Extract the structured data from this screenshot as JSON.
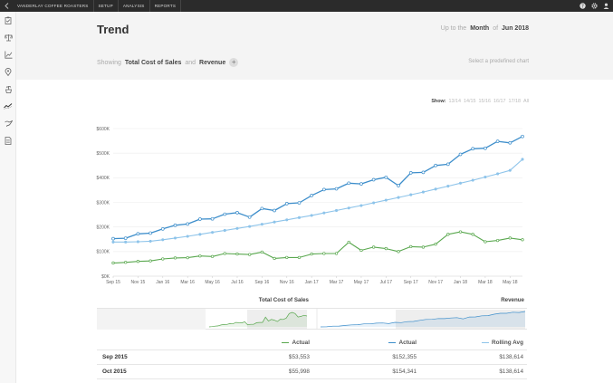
{
  "topbar": {
    "nav": [
      "VANDERLAY COFFEE ROASTERS",
      "SETUP",
      "ANALYSIS",
      "REPORTS"
    ],
    "icons": [
      "help-icon",
      "gear-icon",
      "user-icon"
    ]
  },
  "sidebar": {
    "icons": [
      "clipboard-icon",
      "scale-icon",
      "chart-line-icon",
      "location-icon",
      "coffee-plant-icon",
      "trend-icon",
      "bird-icon",
      "document-icon"
    ]
  },
  "header": {
    "title": "Trend",
    "upto_prefix": "Up to the",
    "period": "Month",
    "upto_of": "of",
    "date": "Jun 2018",
    "showing_label": "Showing",
    "metric1": "Total Cost of Sales",
    "and_label": "and",
    "metric2": "Revenue",
    "add_symbol": "+",
    "predefined": "Select a predefined chart"
  },
  "show_range": {
    "label": "Show:",
    "options": [
      "13/14",
      "14/15",
      "15/16",
      "16/17",
      "17/18",
      "All"
    ]
  },
  "chart_data": {
    "type": "line",
    "x": [
      "Sep 15",
      "Oct 15",
      "Nov 15",
      "Dec 15",
      "Jan 16",
      "Feb 16",
      "Mar 16",
      "Apr 16",
      "May 16",
      "Jun 16",
      "Jul 16",
      "Aug 16",
      "Sep 16",
      "Oct 16",
      "Nov 16",
      "Dec 16",
      "Jan 17",
      "Feb 17",
      "Mar 17",
      "Apr 17",
      "May 17",
      "Jun 17",
      "Jul 17",
      "Aug 17",
      "Sep 17",
      "Oct 17",
      "Nov 17",
      "Dec 17",
      "Jan 18",
      "Feb 18",
      "Mar 18",
      "Apr 18",
      "May 18",
      "Jun 18"
    ],
    "x_tick_labels": [
      "Sep 15",
      "Nov 15",
      "Jan 16",
      "Mar 16",
      "May 16",
      "Jul 16",
      "Sep 16",
      "Nov 16",
      "Jan 17",
      "Mar 17",
      "May 17",
      "Jul 17",
      "Sep 17",
      "Nov 17",
      "Jan 18",
      "Mar 18",
      "May 18"
    ],
    "y_tick_labels": [
      "$0K",
      "$100K",
      "$200K",
      "$300K",
      "$400K",
      "$500K",
      "$600K"
    ],
    "ylim": [
      0,
      600000
    ],
    "grid": true,
    "series": [
      {
        "name": "Revenue Actual",
        "color": "#3d8ecb",
        "values": [
          152355,
          154341,
          172000,
          175000,
          192000,
          207000,
          212000,
          232000,
          233000,
          252000,
          258000,
          240000,
          275000,
          267000,
          295000,
          298000,
          328000,
          352000,
          355000,
          378000,
          375000,
          392000,
          402000,
          368000,
          420000,
          422000,
          450000,
          455000,
          495000,
          518000,
          520000,
          548000,
          542000,
          568000
        ]
      },
      {
        "name": "Rolling Avg",
        "color": "#8ec4ea",
        "values": [
          138614,
          138614,
          140000,
          142000,
          148000,
          155000,
          162000,
          170000,
          178000,
          186000,
          194000,
          202000,
          211000,
          220000,
          229000,
          238000,
          247000,
          257000,
          267000,
          277000,
          287000,
          298000,
          309000,
          320000,
          331000,
          342000,
          354000,
          366000,
          378000,
          390000,
          403000,
          416000,
          430000,
          475000
        ]
      },
      {
        "name": "Total Cost of Sales Actual",
        "color": "#5aa84f",
        "values": [
          53553,
          55998,
          60000,
          62000,
          70000,
          74000,
          75000,
          82000,
          80000,
          92000,
          90000,
          88000,
          98000,
          72000,
          76000,
          76000,
          90000,
          92000,
          92000,
          138000,
          105000,
          118000,
          112000,
          100000,
          120000,
          118000,
          130000,
          170000,
          180000,
          170000,
          140000,
          145000,
          155000,
          148000
        ]
      }
    ]
  },
  "sparklines": {
    "cost_title": "Total Cost of Sales",
    "revenue_title": "Revenue"
  },
  "table": {
    "headers": {
      "actual_cost": "Actual",
      "actual_revenue": "Actual",
      "rolling": "Rolling Avg"
    },
    "colors": {
      "cost": "#5aa84f",
      "revenue": "#3d8ecb",
      "rolling": "#8ec4ea"
    },
    "rows": [
      {
        "label": "Sep 2015",
        "cost": "$53,553",
        "revenue": "$152,355",
        "rolling": "$138,614"
      },
      {
        "label": "Oct 2015",
        "cost": "$55,998",
        "revenue": "$154,341",
        "rolling": "$138,614"
      }
    ]
  }
}
